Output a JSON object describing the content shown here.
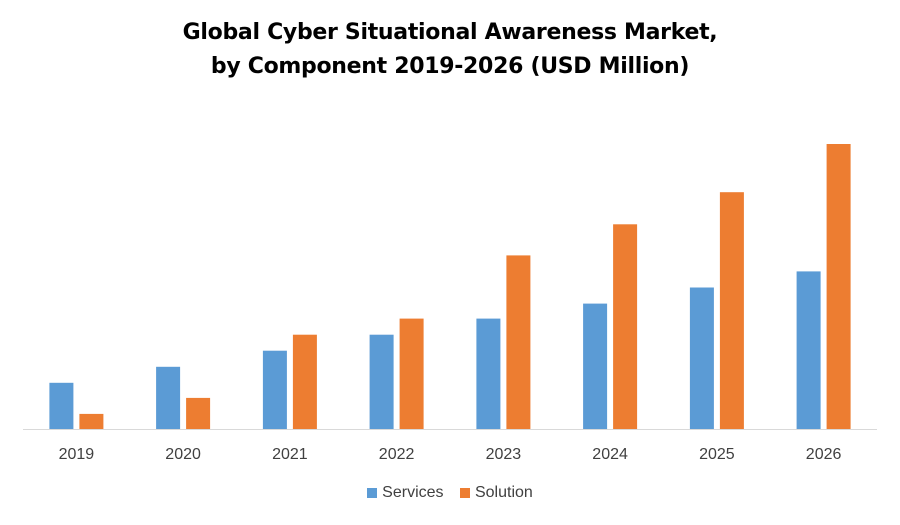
{
  "chart_data": {
    "type": "bar",
    "title": "Global Cyber Situational Awareness Market,",
    "subtitle": "by Component 2019-2026 (USD Million)",
    "categories": [
      "2019",
      "2020",
      "2021",
      "2022",
      "2023",
      "2024",
      "2025",
      "2026"
    ],
    "series": [
      {
        "name": "Services",
        "color": "#5B9BD5",
        "values": [
          46,
          62,
          78,
          94,
          110,
          125,
          141,
          157
        ]
      },
      {
        "name": "Solution",
        "color": "#ED7D31",
        "values": [
          15,
          31,
          94,
          110,
          173,
          204,
          236,
          284
        ]
      }
    ],
    "ylim": [
      0,
      300
    ],
    "grid": false,
    "legend_position": "bottom"
  }
}
